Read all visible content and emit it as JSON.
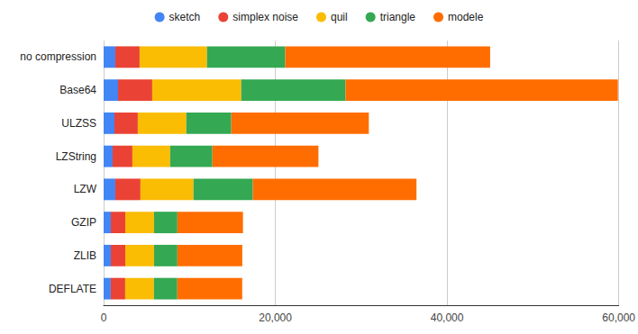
{
  "chart_data": {
    "type": "bar",
    "orientation": "horizontal",
    "stacked": true,
    "grid": true,
    "legend": "top",
    "categories": [
      "no compression",
      "Base64",
      "ULZSS",
      "LZString",
      "LZW",
      "GZIP",
      "ZLIB",
      "DEFLATE"
    ],
    "series": [
      {
        "name": "sketch",
        "color": "#4285f4",
        "values": [
          1360,
          1680,
          1260,
          1050,
          1360,
          840,
          840,
          830
        ]
      },
      {
        "name": "simplex noise",
        "color": "#ea4335",
        "values": [
          2830,
          3980,
          2720,
          2300,
          2930,
          1680,
          1680,
          1680
        ]
      },
      {
        "name": "quil",
        "color": "#fbbc04",
        "values": [
          7850,
          10370,
          5650,
          4400,
          6180,
          3350,
          3350,
          3350
        ]
      },
      {
        "name": "triangle",
        "color": "#34a853",
        "values": [
          9110,
          12150,
          5240,
          4920,
          6910,
          2720,
          2720,
          2720
        ]
      },
      {
        "name": "modele",
        "color": "#ff6d01",
        "values": [
          23870,
          31720,
          16020,
          12350,
          19060,
          7640,
          7560,
          7560
        ]
      }
    ],
    "xlim": [
      0,
      60000
    ],
    "xticks": [
      0,
      20000,
      40000,
      60000
    ]
  }
}
